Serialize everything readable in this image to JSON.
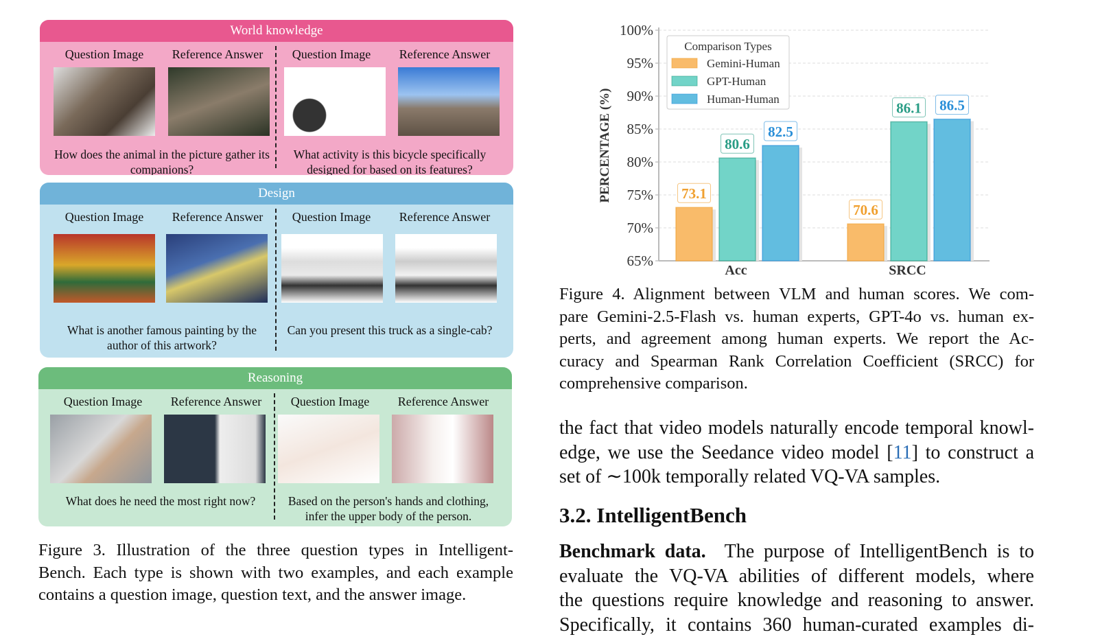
{
  "figure3": {
    "panels": [
      {
        "title": "World knowledge",
        "header_color": "#e8588f",
        "body_color": "#f3a8c7",
        "col_labels": [
          "Question Image",
          "Reference Answer",
          "Question Image",
          "Reference Answer"
        ],
        "questions": [
          "How does the animal in the picture gather its companions?",
          "What activity is this bicycle specifically designed for based on its features?"
        ]
      },
      {
        "title": "Design",
        "header_color": "#70b3d9",
        "body_color": "#c0e1ef",
        "col_labels": [
          "Question Image",
          "Reference Answer",
          "Question Image",
          "Reference Answer"
        ],
        "questions": [
          "What is another famous painting by the author of this artwork?",
          "Can you present this truck as a single-cab?"
        ]
      },
      {
        "title": "Reasoning",
        "header_color": "#6cbc7c",
        "body_color": "#c8e8d3",
        "col_labels": [
          "Question Image",
          "Reference Answer",
          "Question Image",
          "Reference Answer"
        ],
        "questions": [
          "What does he need the most right now?",
          "Based on the person's hands and clothing, infer the upper body of the person."
        ]
      }
    ],
    "caption_lines": [
      "Figure 3.  Illustration of the three question types in Intelligent-",
      "Bench. Each type is shown with two examples, and each example",
      "contains a question image, question text, and the answer image."
    ]
  },
  "chart_data": {
    "type": "bar",
    "categories": [
      "Acc",
      "SRCC"
    ],
    "series": [
      {
        "name": "Gemini-Human",
        "values": [
          73.1,
          70.6
        ],
        "color": "#f9bb6a",
        "label_color": "#f0a030"
      },
      {
        "name": "GPT-Human",
        "values": [
          80.6,
          86.1
        ],
        "color": "#72d4c8",
        "label_color": "#2a9d86"
      },
      {
        "name": "Human-Human",
        "values": [
          82.5,
          86.5
        ],
        "color": "#62bde0",
        "label_color": "#2a8fd8"
      }
    ],
    "ylabel": "PERCENTAGE (%)",
    "ylim": [
      65,
      100
    ],
    "yticks": [
      "65%",
      "70%",
      "75%",
      "80%",
      "85%",
      "90%",
      "95%",
      "100%"
    ],
    "legend_title": "Comparison Types",
    "legend_position": "top-left",
    "grid": true
  },
  "figure4": {
    "caption_lines": [
      "Figure 4.  Alignment between VLM and human scores.  We com-",
      "pare Gemini-2.5-Flash vs. human experts, GPT-4o vs. human ex-",
      "perts, and agreement among human experts.  We report the Ac-",
      "curacy and Spearman Rank Correlation Coefficient (SRCC) for",
      "comprehensive comparison."
    ]
  },
  "text": {
    "para1_a": "the fact that video models naturally encode temporal knowl-",
    "para1_b_pre": "edge, we use the Seedance video model [",
    "para1_b_ref": "11",
    "para1_b_post": "] to construct a",
    "para1_c": "set of ∼100k temporally related VQ-VA samples.",
    "section_heading": "3.2. IntelligentBench",
    "para2_bold": "Benchmark data.",
    "para2_lines": [
      "The purpose of IntelligentBench is to",
      "evaluate the VQ-VA abilities of different models, where",
      "the questions require knowledge and reasoning to answer.",
      "Specifically, it contains 360 human-curated examples di-"
    ]
  }
}
